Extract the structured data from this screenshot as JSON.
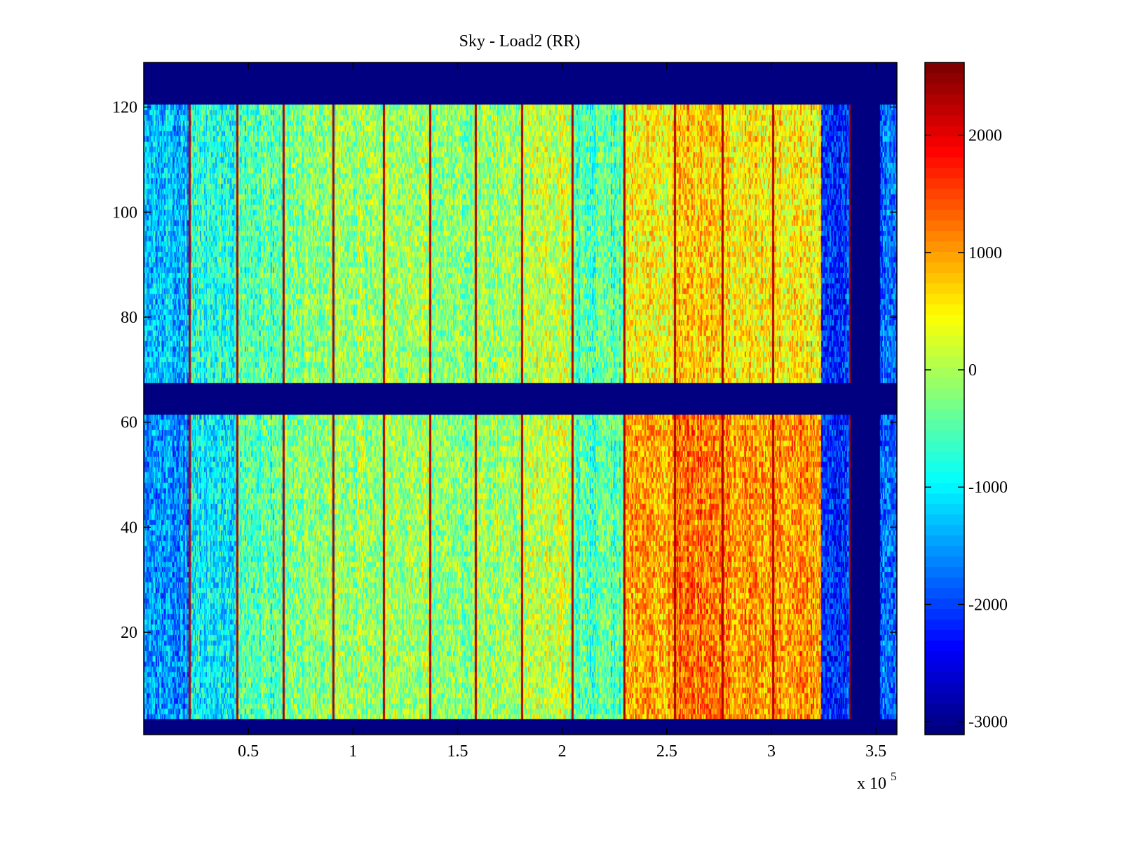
{
  "chart_data": {
    "type": "heatmap",
    "title": "Sky - Load2 (RR)",
    "xlabel": "",
    "ylabel": "",
    "x_exponent_label": "x 10",
    "x_exponent_power": "5",
    "xlim": [
      0,
      360000
    ],
    "ylim": [
      0.5,
      128.5
    ],
    "x_ticks": [
      50000,
      100000,
      150000,
      200000,
      250000,
      300000,
      350000
    ],
    "x_tick_labels": [
      "0.5",
      "1",
      "1.5",
      "2",
      "2.5",
      "3",
      "3.5"
    ],
    "y_ticks": [
      20,
      40,
      60,
      80,
      100,
      120
    ],
    "y_tick_labels": [
      "20",
      "40",
      "60",
      "80",
      "100",
      "120"
    ],
    "colormap": "jet",
    "clim": [
      -3110,
      2620
    ],
    "colorbar": {
      "ticks": [
        2000,
        1000,
        0,
        -1000,
        -2000,
        -3000
      ],
      "tick_labels": [
        "2000",
        "1000",
        "0",
        "-1000",
        "-2000",
        "-3000"
      ]
    },
    "empty_fill_value": -3110,
    "empty_row_ranges": [
      [
        1,
        3
      ],
      [
        62,
        67
      ],
      [
        121,
        128
      ]
    ],
    "empty_column_ranges": [
      [
        338000,
        352000
      ]
    ],
    "stripe_columns_x": [
      22000,
      45000,
      67000,
      91000,
      115000,
      137000,
      159000,
      181000,
      205000,
      230000,
      254000,
      277000,
      301000,
      338000
    ],
    "stripe_value": 2300,
    "column_band_means": [
      {
        "x_from": 0,
        "x_to": 22000,
        "mean": -1300
      },
      {
        "x_from": 22000,
        "x_to": 45000,
        "mean": -800
      },
      {
        "x_from": 45000,
        "x_to": 67000,
        "mean": -500
      },
      {
        "x_from": 67000,
        "x_to": 91000,
        "mean": -200
      },
      {
        "x_from": 91000,
        "x_to": 115000,
        "mean": -100
      },
      {
        "x_from": 115000,
        "x_to": 137000,
        "mean": 0
      },
      {
        "x_from": 137000,
        "x_to": 159000,
        "mean": -150
      },
      {
        "x_from": 159000,
        "x_to": 181000,
        "mean": -100
      },
      {
        "x_from": 181000,
        "x_to": 205000,
        "mean": 100
      },
      {
        "x_from": 205000,
        "x_to": 230000,
        "mean": -500
      },
      {
        "x_from": 230000,
        "x_to": 254000,
        "mean": 600
      },
      {
        "x_from": 254000,
        "x_to": 277000,
        "mean": 900
      },
      {
        "x_from": 277000,
        "x_to": 301000,
        "mean": 700
      },
      {
        "x_from": 301000,
        "x_to": 324000,
        "mean": 700
      },
      {
        "x_from": 324000,
        "x_to": 338000,
        "mean": -2100
      },
      {
        "x_from": 352000,
        "x_to": 360000,
        "mean": -1700
      }
    ],
    "row_trend": "upper block (rows 68-120) cooler in the right half than lower block (rows 4-61); lower block warmest around x 2.4-3.2 x 10^5, rows 5-50",
    "noise_amplitude": 650,
    "grid": false,
    "legend": "none"
  }
}
